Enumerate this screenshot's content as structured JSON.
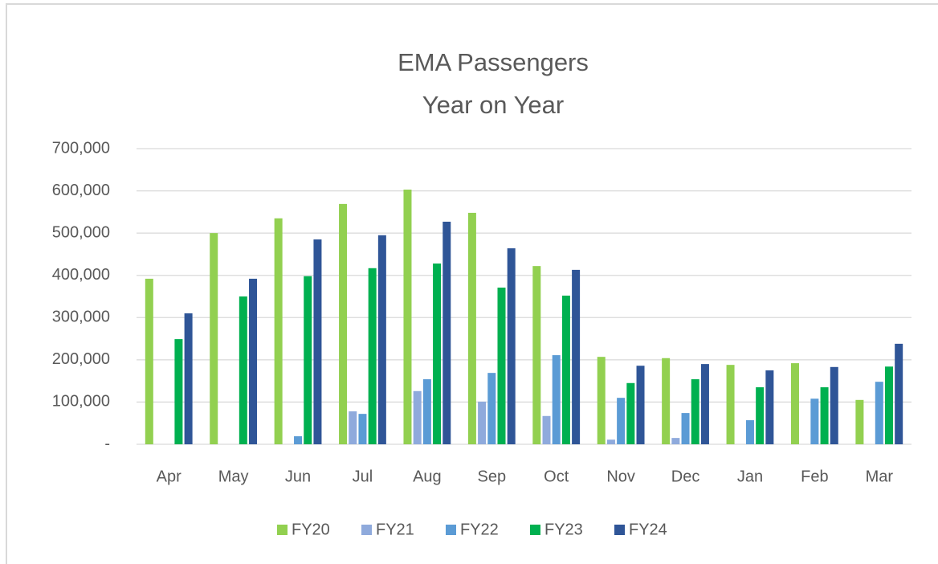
{
  "chart_data": {
    "type": "bar",
    "title": "EMA Passengers",
    "subtitle": "Year on Year",
    "categories": [
      "Apr",
      "May",
      "Jun",
      "Jul",
      "Aug",
      "Sep",
      "Oct",
      "Nov",
      "Dec",
      "Jan",
      "Feb",
      "Mar"
    ],
    "series": [
      {
        "name": "FY20",
        "color": "#92d050",
        "values": [
          392000,
          500000,
          535000,
          569000,
          603000,
          548000,
          422000,
          207000,
          204000,
          188000,
          192000,
          105000
        ]
      },
      {
        "name": "FY21",
        "color": "#8faadc",
        "values": [
          null,
          null,
          null,
          78000,
          126000,
          101000,
          67000,
          11000,
          15000,
          null,
          null,
          null
        ]
      },
      {
        "name": "FY22",
        "color": "#5b9bd5",
        "values": [
          null,
          null,
          19000,
          72000,
          154000,
          169000,
          211000,
          110000,
          74000,
          57000,
          108000,
          148000
        ]
      },
      {
        "name": "FY23",
        "color": "#00b050",
        "values": [
          249000,
          350000,
          398000,
          417000,
          428000,
          371000,
          352000,
          145000,
          154000,
          135000,
          135000,
          184000
        ]
      },
      {
        "name": "FY24",
        "color": "#2f5597",
        "values": [
          310000,
          392000,
          485000,
          495000,
          527000,
          464000,
          413000,
          186000,
          190000,
          175000,
          183000,
          238000
        ]
      }
    ],
    "ylim": [
      0,
      700000
    ],
    "yticks": [
      {
        "value": 0,
        "label": "-"
      },
      {
        "value": 100000,
        "label": "100,000"
      },
      {
        "value": 200000,
        "label": "200,000"
      },
      {
        "value": 300000,
        "label": "300,000"
      },
      {
        "value": 400000,
        "label": "400,000"
      },
      {
        "value": 500000,
        "label": "500,000"
      },
      {
        "value": 600000,
        "label": "600,000"
      },
      {
        "value": 700000,
        "label": "700,000"
      }
    ],
    "grid": true,
    "legend": "bottom"
  }
}
